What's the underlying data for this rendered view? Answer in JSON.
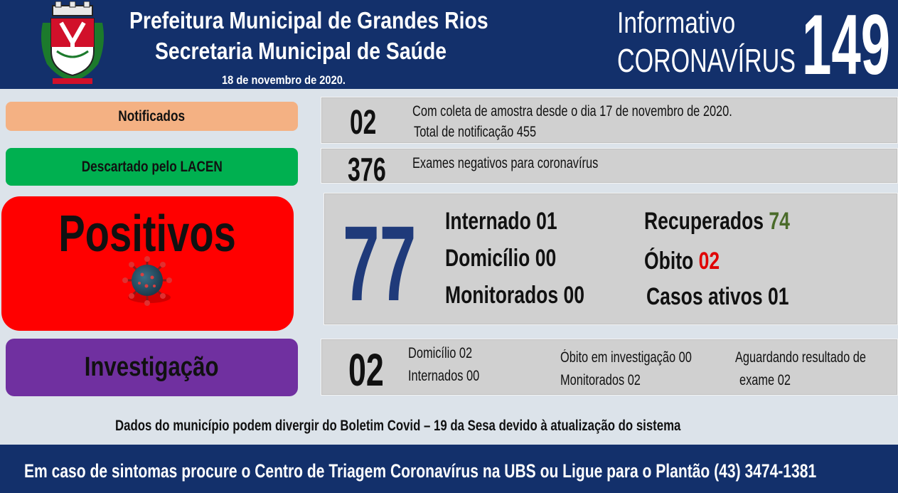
{
  "header": {
    "title_line1": "Prefeitura Municipal de Grandes Rios",
    "title_line2": "Secretaria Municipal de Saúde",
    "date": "18 de novembro de 2020.",
    "info_line1": "Informativo",
    "info_line2": "CORONAVÍRUS",
    "edition_number": "149"
  },
  "notificados": {
    "label": "Notificados",
    "count": "02",
    "desc_line1": "Com coleta de amostra desde o dia 17 de novembro de 2020.",
    "desc_line2": "Total de notificação 455"
  },
  "descartado": {
    "label": "Descartado pelo LACEN",
    "count": "376",
    "desc": "Exames negativos para coronavírus"
  },
  "positivos": {
    "label": "Positivos",
    "count": "77",
    "internado": "Internado 01",
    "domicilio": "Domicílio 00",
    "monitorados": "Monitorados 00",
    "recuperados_label": "Recuperados",
    "recuperados_value": "74",
    "obito_label": "Óbito",
    "obito_value": "02",
    "casos_ativos": "Casos ativos 01"
  },
  "investigacao": {
    "label": "Investigação",
    "count": "02",
    "domicilio": "Domicílio 02",
    "internados": "Internados 00",
    "obito": "Óbito em investigação 00",
    "monitorados": "Monitorados 02",
    "aguardando_line1": "Aguardando resultado de",
    "aguardando_line2": "exame 02"
  },
  "disclaimer": "Dados do município podem divergir do Boletim Covid – 19 da Sesa devido à atualização do sistema",
  "footer": "Em caso de sintomas procure o Centro de Triagem Coronavírus na UBS ou Ligue para o Plantão (43) 3474-1381",
  "colors": {
    "header_bg": "#13306b",
    "notificados": "#f4b183",
    "descartado": "#00b050",
    "positivos": "#ff0000",
    "investigacao": "#7030a0",
    "panel": "#d0d0d0",
    "recuperados": "#4a6b2a",
    "obito": "#e00000",
    "big_number": "#1f3a7a"
  },
  "icons": [
    "municipal-crest-icon",
    "coronavirus-icon"
  ]
}
